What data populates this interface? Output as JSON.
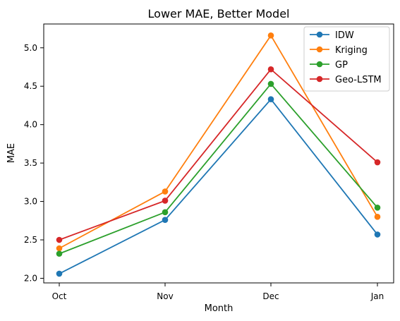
{
  "chart_data": {
    "type": "line",
    "title": "Lower MAE, Better Model",
    "xlabel": "Month",
    "ylabel": "MAE",
    "categories": [
      "Oct",
      "Nov",
      "Dec",
      "Jan"
    ],
    "ylim": [
      1.94,
      5.31
    ],
    "yticks": [
      2.0,
      2.5,
      3.0,
      3.5,
      4.0,
      4.5,
      5.0
    ],
    "yticklabels": [
      "2.0",
      "2.5",
      "3.0",
      "3.5",
      "4.0",
      "4.5",
      "5.0"
    ],
    "grid": false,
    "legend_position": "top-right",
    "series": [
      {
        "name": "IDW",
        "color": "#1f77b4",
        "values": [
          2.06,
          2.76,
          4.33,
          2.57
        ]
      },
      {
        "name": "Kriging",
        "color": "#ff7f0e",
        "values": [
          2.39,
          3.13,
          5.16,
          2.8
        ]
      },
      {
        "name": "GP",
        "color": "#2ca02c",
        "values": [
          2.32,
          2.86,
          4.53,
          2.92
        ]
      },
      {
        "name": "Geo-LSTM",
        "color": "#d62728",
        "values": [
          2.5,
          3.01,
          4.72,
          3.51
        ]
      }
    ]
  }
}
